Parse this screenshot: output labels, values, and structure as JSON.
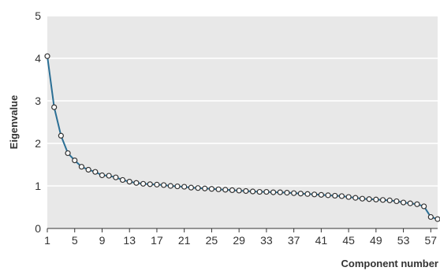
{
  "chart_data": {
    "type": "line",
    "xlabel": "Component number",
    "ylabel": "Eigenvalue",
    "xlim": [
      1,
      58
    ],
    "ylim": [
      0,
      5
    ],
    "x_ticks": [
      1,
      5,
      9,
      13,
      17,
      21,
      25,
      29,
      33,
      37,
      41,
      45,
      49,
      53,
      57
    ],
    "y_ticks": [
      0,
      1,
      2,
      3,
      4,
      5
    ],
    "grid": true,
    "legend": "none",
    "colors": {
      "plot_background": "#e8e8e8",
      "gridline": "#ffffff",
      "line": "#2b6f95",
      "marker_fill": "#ffffff",
      "marker_edge": "#333333"
    },
    "series": [
      {
        "x": [
          1,
          2,
          3,
          4,
          5,
          6,
          7,
          8,
          9,
          10,
          11,
          12,
          13,
          14,
          15,
          16,
          17,
          18,
          19,
          20,
          21,
          22,
          23,
          24,
          25,
          26,
          27,
          28,
          29,
          30,
          31,
          32,
          33,
          34,
          35,
          36,
          37,
          38,
          39,
          40,
          41,
          42,
          43,
          44,
          45,
          46,
          47,
          48,
          49,
          50,
          51,
          52,
          53,
          54,
          55,
          56,
          57,
          58
        ],
        "values": [
          4.05,
          2.85,
          2.18,
          1.77,
          1.6,
          1.45,
          1.38,
          1.33,
          1.25,
          1.24,
          1.2,
          1.14,
          1.1,
          1.07,
          1.05,
          1.04,
          1.03,
          1.02,
          1.0,
          0.99,
          0.98,
          0.96,
          0.95,
          0.94,
          0.93,
          0.92,
          0.91,
          0.9,
          0.89,
          0.88,
          0.87,
          0.86,
          0.86,
          0.85,
          0.85,
          0.84,
          0.83,
          0.82,
          0.81,
          0.8,
          0.79,
          0.78,
          0.77,
          0.76,
          0.74,
          0.72,
          0.7,
          0.69,
          0.68,
          0.67,
          0.66,
          0.64,
          0.61,
          0.59,
          0.57,
          0.52,
          0.27,
          0.22
        ]
      }
    ]
  }
}
